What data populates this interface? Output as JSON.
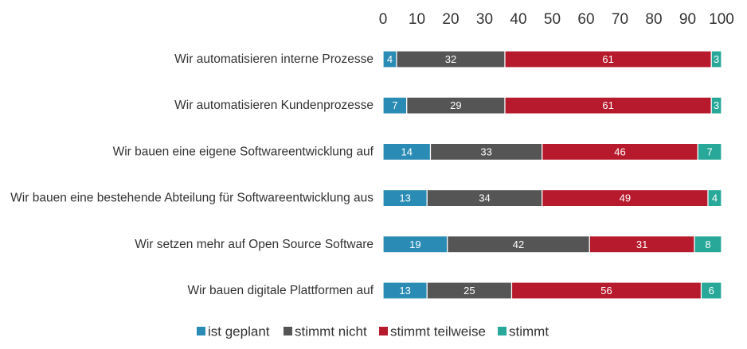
{
  "chart_data": {
    "type": "bar",
    "orientation": "horizontal",
    "stacked": true,
    "title": "",
    "xlabel": "",
    "ylabel": "",
    "xlim": [
      0,
      100
    ],
    "x_ticks": [
      "0",
      "10",
      "20",
      "30",
      "40",
      "50",
      "60",
      "70",
      "80",
      "90",
      "100"
    ],
    "x_tick_values": [
      0,
      10,
      20,
      30,
      40,
      50,
      60,
      70,
      80,
      90,
      100
    ],
    "categories": [
      "Wir automatisieren interne Prozesse",
      "Wir automatisieren Kundenprozesse",
      "Wir bauen eine eigene Softwareentwicklung auf",
      "Wir bauen eine bestehende Abteilung für Softwareentwicklung aus",
      "Wir setzen mehr auf Open Source Software",
      "Wir bauen digitale Plattformen auf"
    ],
    "series": [
      {
        "name": "ist geplant",
        "color": "#2a8bb4",
        "values": [
          4,
          7,
          14,
          13,
          19,
          13
        ]
      },
      {
        "name": "stimmt nicht",
        "color": "#555555",
        "values": [
          32,
          29,
          33,
          34,
          42,
          25
        ]
      },
      {
        "name": "stimmt teilweise",
        "color": "#b61a2c",
        "values": [
          61,
          61,
          46,
          49,
          31,
          56
        ]
      },
      {
        "name": "stimmt",
        "color": "#27a898",
        "values": [
          3,
          3,
          7,
          4,
          8,
          6
        ]
      }
    ],
    "legend_position": "bottom",
    "grid": false
  }
}
